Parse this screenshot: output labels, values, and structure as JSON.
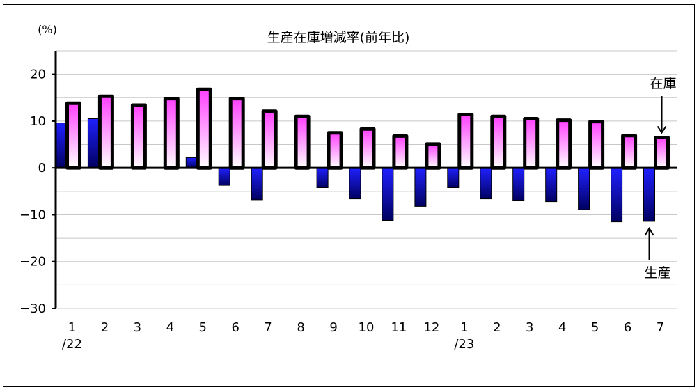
{
  "chart_data": {
    "type": "bar",
    "title": "生産在庫増減率(前年比)",
    "unit_label": "(%)",
    "ylim": [
      -30,
      25
    ],
    "yticks": [
      20,
      10,
      0,
      -10,
      -20,
      -30
    ],
    "ytick_labels": [
      "20",
      "10",
      "0",
      "−10",
      "−20",
      "−30"
    ],
    "grid": true,
    "categories": [
      "1",
      "2",
      "3",
      "4",
      "5",
      "6",
      "7",
      "8",
      "9",
      "10",
      "11",
      "12",
      "1",
      "2",
      "3",
      "4",
      "5",
      "6",
      "7"
    ],
    "year_labels": [
      {
        "index": 0,
        "text": "/22"
      },
      {
        "index": 12,
        "text": "/23"
      }
    ],
    "series": [
      {
        "name": "生産",
        "color": "#1010c0",
        "values": [
          9.6,
          10.5,
          0.0,
          0.0,
          2.2,
          -3.7,
          -6.8,
          0.0,
          -4.2,
          -6.6,
          -11.2,
          -8.2,
          -4.2,
          -6.6,
          -6.9,
          -7.2,
          -8.9,
          -11.5,
          -11.4
        ]
      },
      {
        "name": "在庫",
        "color": "#ff40ff",
        "values": [
          13.8,
          15.3,
          13.4,
          14.8,
          16.8,
          14.8,
          12.1,
          11.0,
          7.5,
          8.3,
          6.8,
          5.1,
          11.4,
          11.0,
          10.5,
          10.2,
          9.9,
          6.9,
          6.5
        ]
      }
    ],
    "annotations": [
      {
        "text": "在庫",
        "series": "在庫",
        "index": 18
      },
      {
        "text": "生産",
        "series": "生産",
        "index": 18
      }
    ]
  }
}
